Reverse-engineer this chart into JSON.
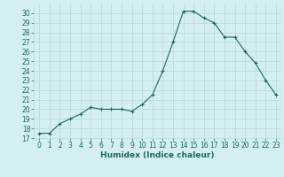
{
  "x": [
    0,
    1,
    2,
    3,
    4,
    5,
    6,
    7,
    8,
    9,
    10,
    11,
    12,
    13,
    14,
    15,
    16,
    17,
    18,
    19,
    20,
    21,
    22,
    23
  ],
  "y": [
    17.5,
    17.5,
    18.5,
    19.0,
    19.5,
    20.2,
    20.0,
    20.0,
    20.0,
    19.8,
    20.5,
    21.5,
    24.0,
    27.0,
    30.2,
    30.2,
    29.5,
    29.0,
    27.5,
    27.5,
    26.0,
    24.8,
    23.0,
    21.5
  ],
  "line_color": "#1a6b5a",
  "marker": "+",
  "bg_color": "#d4efef",
  "grid_color": "#b8d8d8",
  "xlabel": "Humidex (Indice chaleur)",
  "ylim": [
    17,
    31
  ],
  "xlim": [
    -0.5,
    23.5
  ],
  "yticks": [
    17,
    18,
    19,
    20,
    21,
    22,
    23,
    24,
    25,
    26,
    27,
    28,
    29,
    30
  ],
  "xticks": [
    0,
    1,
    2,
    3,
    4,
    5,
    6,
    7,
    8,
    9,
    10,
    11,
    12,
    13,
    14,
    15,
    16,
    17,
    18,
    19,
    20,
    21,
    22,
    23
  ],
  "tick_labelsize": 5.5,
  "xlabel_fontsize": 6.5
}
